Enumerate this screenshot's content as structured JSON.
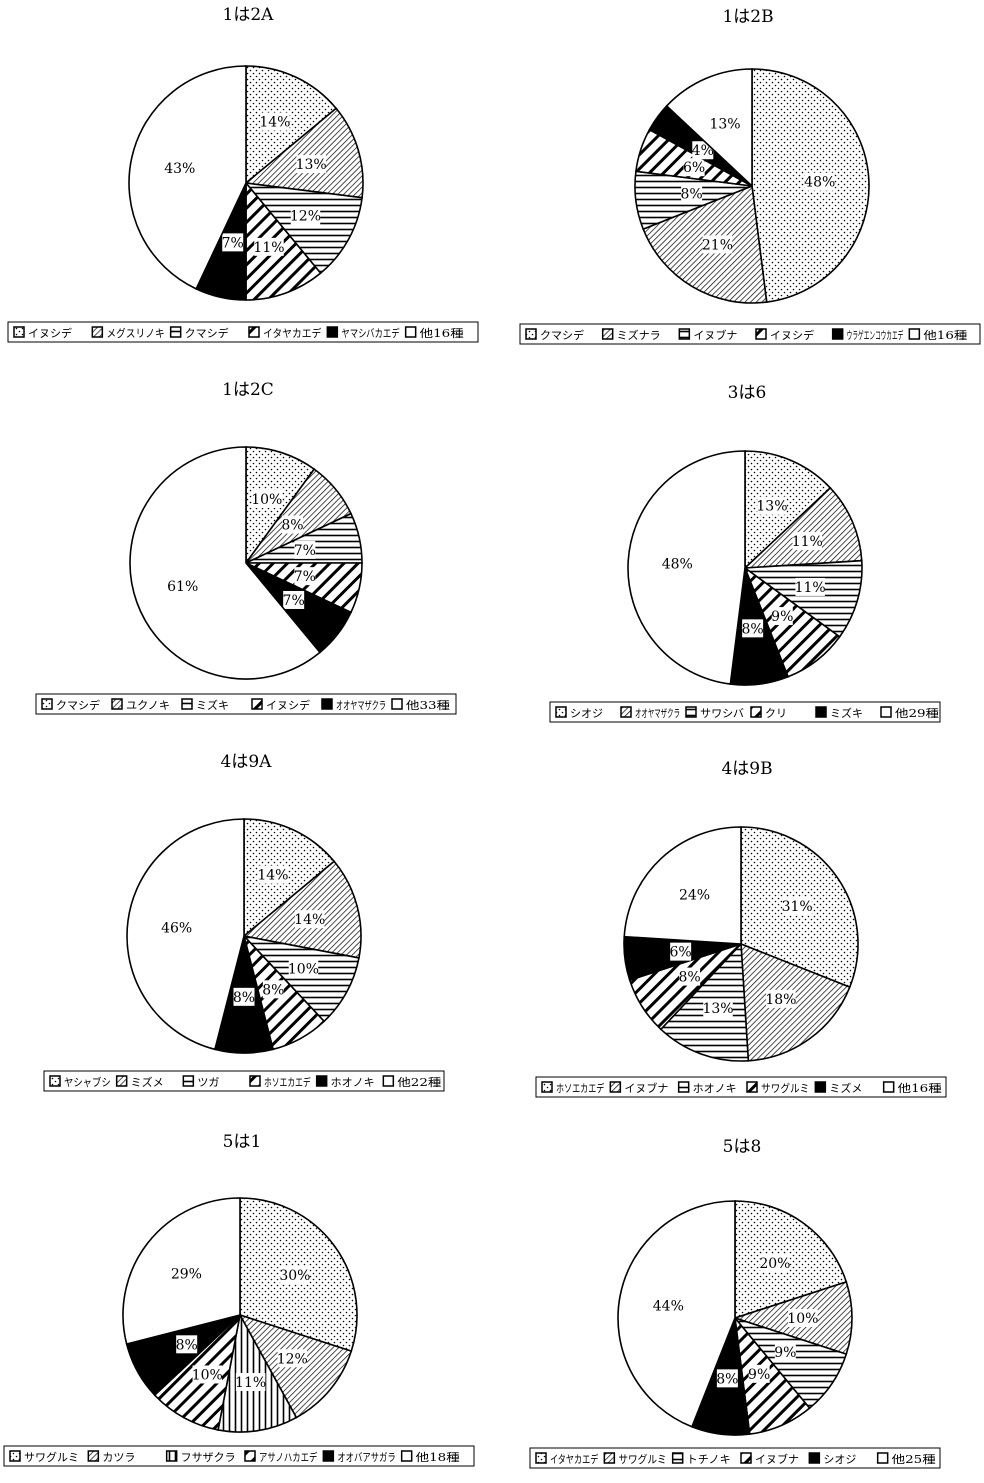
{
  "chart_data": [
    {
      "type": "pie",
      "title": "1は2A",
      "slices": [
        {
          "label": "イヌシデ",
          "value": 14,
          "text": "14%",
          "pattern": "dots"
        },
        {
          "label": "メグスリノキ",
          "value": 13,
          "text": "13%",
          "pattern": "diag-thin"
        },
        {
          "label": "クマシデ",
          "value": 12,
          "text": "12%",
          "pattern": "horiz"
        },
        {
          "label": "イタヤカエデ",
          "value": 11,
          "text": "11%",
          "pattern": "diag-thick"
        },
        {
          "label": "ヤマシバカエデ",
          "value": 7,
          "text": "7%",
          "pattern": "black"
        },
        {
          "label": "他16種",
          "value": 43,
          "text": "43%",
          "pattern": "white"
        }
      ],
      "legend": [
        "イヌシデ",
        "メグスリノキ",
        "クマシデ",
        "イタヤカエデ",
        "ヤマシバカエデ",
        "他16種"
      ]
    },
    {
      "type": "pie",
      "title": "1は2B",
      "slices": [
        {
          "label": "クマシデ",
          "value": 48,
          "text": "48%",
          "pattern": "dots"
        },
        {
          "label": "ミズナラ",
          "value": 21,
          "text": "21%",
          "pattern": "diag-thin"
        },
        {
          "label": "イヌブナ",
          "value": 8,
          "text": "8%",
          "pattern": "horiz"
        },
        {
          "label": "イヌシデ",
          "value": 6,
          "text": "6%",
          "pattern": "diag-thick"
        },
        {
          "label": "ウラゲエンコウカエデ",
          "value": 4,
          "text": "4%",
          "pattern": "black"
        },
        {
          "label": "他16種",
          "value": 13,
          "text": "13%",
          "pattern": "white"
        }
      ],
      "legend": [
        "クマシデ",
        "ミズナラ",
        "イヌブナ",
        "イヌシデ",
        "ウラゲエンコウカエデ",
        "他16種"
      ]
    },
    {
      "type": "pie",
      "title": "1は2C",
      "slices": [
        {
          "label": "クマシデ",
          "value": 10,
          "text": "10%",
          "pattern": "dots"
        },
        {
          "label": "ユクノキ",
          "value": 8,
          "text": "8%",
          "pattern": "diag-thin"
        },
        {
          "label": "ミズキ",
          "value": 7,
          "text": "7%",
          "pattern": "horiz"
        },
        {
          "label": "イヌシデ",
          "value": 7,
          "text": "7%",
          "pattern": "diag-thick"
        },
        {
          "label": "オオヤマザクラ",
          "value": 7,
          "text": "7%",
          "pattern": "black"
        },
        {
          "label": "他33種",
          "value": 61,
          "text": "61%",
          "pattern": "white"
        }
      ],
      "legend": [
        "クマシデ",
        "ユクノキ",
        "ミズキ",
        "イヌシデ",
        "オオヤマザクラ",
        "他33種"
      ]
    },
    {
      "type": "pie",
      "title": "3は6",
      "slices": [
        {
          "label": "シオジ",
          "value": 13,
          "text": "13%",
          "pattern": "dots"
        },
        {
          "label": "オオヤマザクラ",
          "value": 11,
          "text": "11%",
          "pattern": "diag-thin"
        },
        {
          "label": "サワシバ",
          "value": 11,
          "text": "11%",
          "pattern": "horiz"
        },
        {
          "label": "クリ",
          "value": 9,
          "text": "9%",
          "pattern": "diag-thick"
        },
        {
          "label": "ミズキ",
          "value": 8,
          "text": "8%",
          "pattern": "black"
        },
        {
          "label": "他29種",
          "value": 48,
          "text": "48%",
          "pattern": "white"
        }
      ],
      "legend": [
        "シオジ",
        "オオヤマザクラ",
        "サワシバ",
        "クリ",
        "ミズキ",
        "他29種"
      ]
    },
    {
      "type": "pie",
      "title": "4は9A",
      "slices": [
        {
          "label": "ヤシャブシ",
          "value": 14,
          "text": "14%",
          "pattern": "dots"
        },
        {
          "label": "ミズメ",
          "value": 14,
          "text": "14%",
          "pattern": "diag-thin"
        },
        {
          "label": "ツガ",
          "value": 10,
          "text": "10%",
          "pattern": "horiz"
        },
        {
          "label": "ホソエカエデ",
          "value": 8,
          "text": "8%",
          "pattern": "diag-thick"
        },
        {
          "label": "ホオノキ",
          "value": 8,
          "text": "8%",
          "pattern": "black"
        },
        {
          "label": "他22種",
          "value": 46,
          "text": "46%",
          "pattern": "white"
        }
      ],
      "legend": [
        "ヤシャブシ",
        "ミズメ",
        "ツガ",
        "ホソエカエデ",
        "ホオノキ",
        "他22種"
      ]
    },
    {
      "type": "pie",
      "title": "4は9B",
      "slices": [
        {
          "label": "ホソエカエデ",
          "value": 31,
          "text": "31%",
          "pattern": "dots"
        },
        {
          "label": "イヌブナ",
          "value": 18,
          "text": "18%",
          "pattern": "diag-thin"
        },
        {
          "label": "ホオノキ",
          "value": 13,
          "text": "13%",
          "pattern": "horiz"
        },
        {
          "label": "サワグルミ",
          "value": 8,
          "text": "8%",
          "pattern": "diag-thick"
        },
        {
          "label": "ミズメ",
          "value": 6,
          "text": "6%",
          "pattern": "black"
        },
        {
          "label": "他16種",
          "value": 24,
          "text": "24%",
          "pattern": "white"
        }
      ],
      "legend": [
        "ホソエカエデ",
        "イヌブナ",
        "ホオノキ",
        "サワグルミ",
        "ミズメ",
        "他16種"
      ]
    },
    {
      "type": "pie",
      "title": "5は1",
      "slices": [
        {
          "label": "サワグルミ",
          "value": 30,
          "text": "30%",
          "pattern": "dots"
        },
        {
          "label": "カツラ",
          "value": 12,
          "text": "12%",
          "pattern": "diag-thin"
        },
        {
          "label": "フサザクラ",
          "value": 11,
          "text": "11%",
          "pattern": "vert"
        },
        {
          "label": "アサノハカエデ",
          "value": 10,
          "text": "10%",
          "pattern": "diag-thick"
        },
        {
          "label": "オオバアサガラ",
          "value": 8,
          "text": "8%",
          "pattern": "black"
        },
        {
          "label": "他18種",
          "value": 29,
          "text": "29%",
          "pattern": "white"
        }
      ],
      "legend": [
        "サワグルミ",
        "カツラ",
        "フサザクラ",
        "アサノハカエデ",
        "オオバアサガラ",
        "他18種"
      ]
    },
    {
      "type": "pie",
      "title": "5は8",
      "slices": [
        {
          "label": "イタヤカエデ",
          "value": 20,
          "text": "20%",
          "pattern": "dots"
        },
        {
          "label": "サワグルミ",
          "value": 10,
          "text": "10%",
          "pattern": "diag-thin"
        },
        {
          "label": "トチノキ",
          "value": 9,
          "text": "9%",
          "pattern": "horiz"
        },
        {
          "label": "イヌブナ",
          "value": 9,
          "text": "9%",
          "pattern": "diag-thick"
        },
        {
          "label": "シオジ",
          "value": 8,
          "text": "8%",
          "pattern": "black"
        },
        {
          "label": "他25種",
          "value": 44,
          "text": "44%",
          "pattern": "white"
        }
      ],
      "legend": [
        "イタヤカエデ",
        "サワグルミ",
        "トチノキ",
        "イヌブナ",
        "シオジ",
        "他25種"
      ]
    }
  ]
}
